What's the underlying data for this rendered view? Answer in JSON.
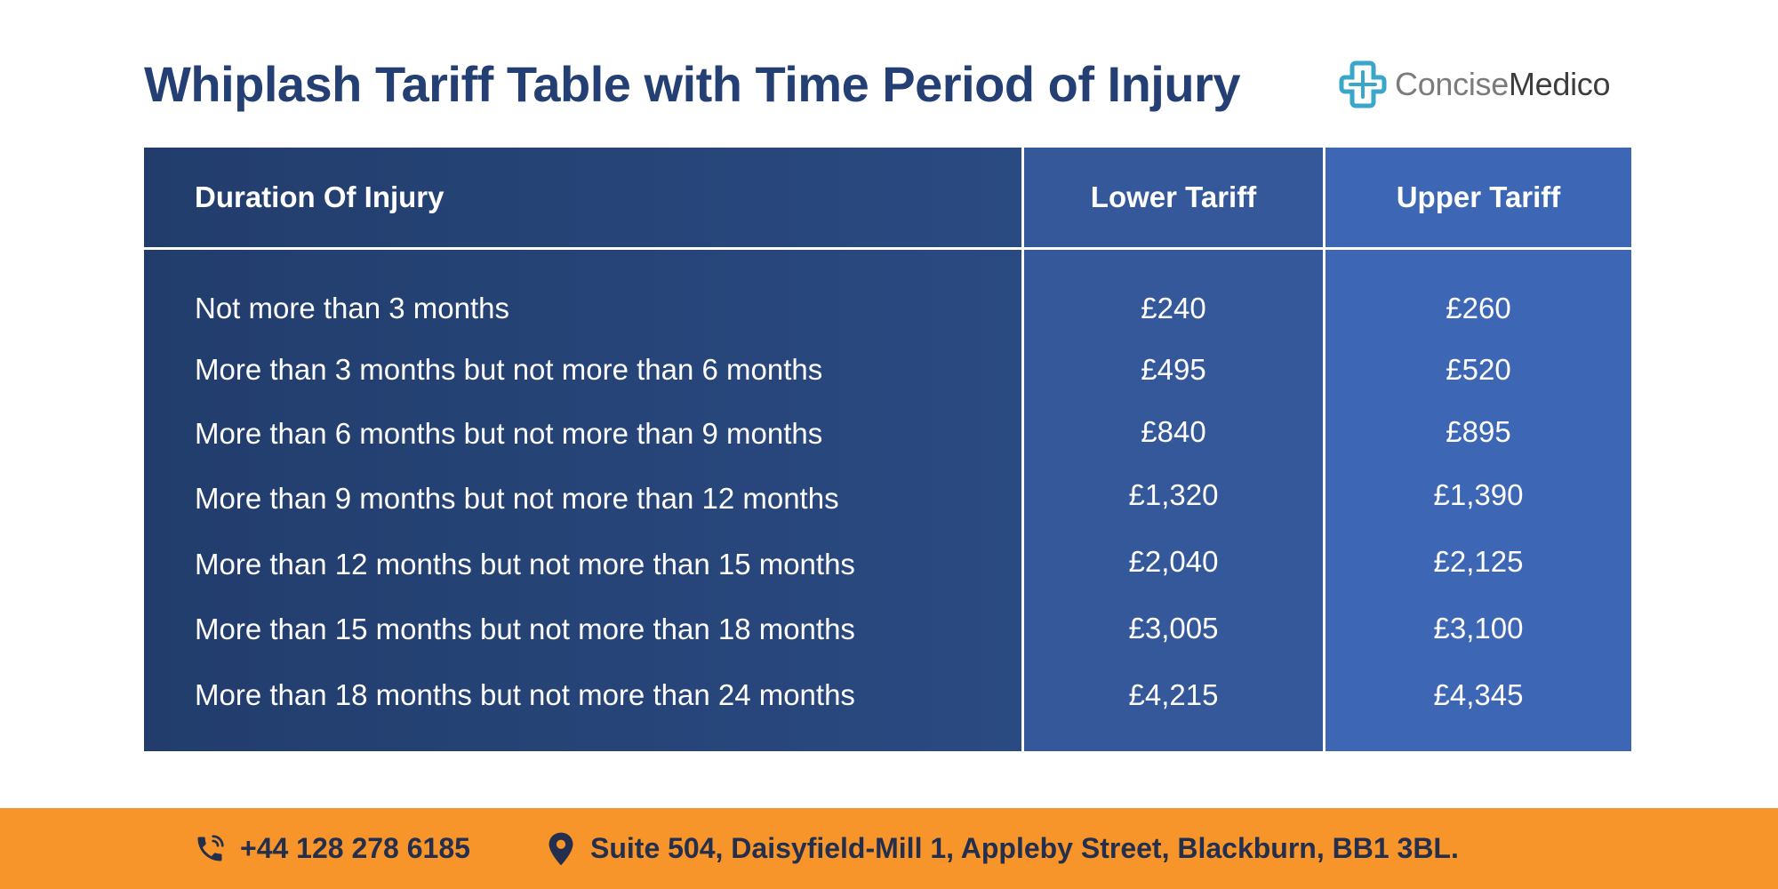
{
  "title": "Whiplash Tariff Table with Time Period of Injury",
  "logo": {
    "icon": "cross-logo-icon",
    "text_part1": "Concise",
    "text_part2": "Medico"
  },
  "table": {
    "headers": [
      "Duration Of Injury",
      "Lower Tariff",
      "Upper Tariff"
    ],
    "rows": [
      {
        "duration": "Not more than 3 months",
        "lower": "£240",
        "upper": "£260"
      },
      {
        "duration": "More than 3 months but not more than 6 months",
        "lower": "£495",
        "upper": "£520"
      },
      {
        "duration": "More than 6 months but not more than 9 months",
        "lower": "£840",
        "upper": "£895"
      },
      {
        "duration": "More than 9 months but not more than 12 months",
        "lower": "£1,320",
        "upper": "£1,390"
      },
      {
        "duration": "More than 12 months but not more than 15 months",
        "lower": "£2,040",
        "upper": "£2,125"
      },
      {
        "duration": "More than 15 months but not more than 18 months",
        "lower": "£3,005",
        "upper": "£3,100"
      },
      {
        "duration": "More than 18 months but not more than 24 months",
        "lower": "£4,215",
        "upper": "£4,345"
      }
    ]
  },
  "footer": {
    "phone_icon": "phone-icon",
    "phone": "+44 128 278 6185",
    "location_icon": "location-pin-icon",
    "address": "Suite 504, Daisyfield-Mill 1, Appleby Street, Blackburn, BB1 3BL."
  },
  "colors": {
    "title": "#243f73",
    "column_duration": "#223d6c",
    "column_lower": "#34589a",
    "column_upper": "#3d67b5",
    "footer_bar": "#f7952a",
    "logo_icon": "#3aa6c9"
  }
}
